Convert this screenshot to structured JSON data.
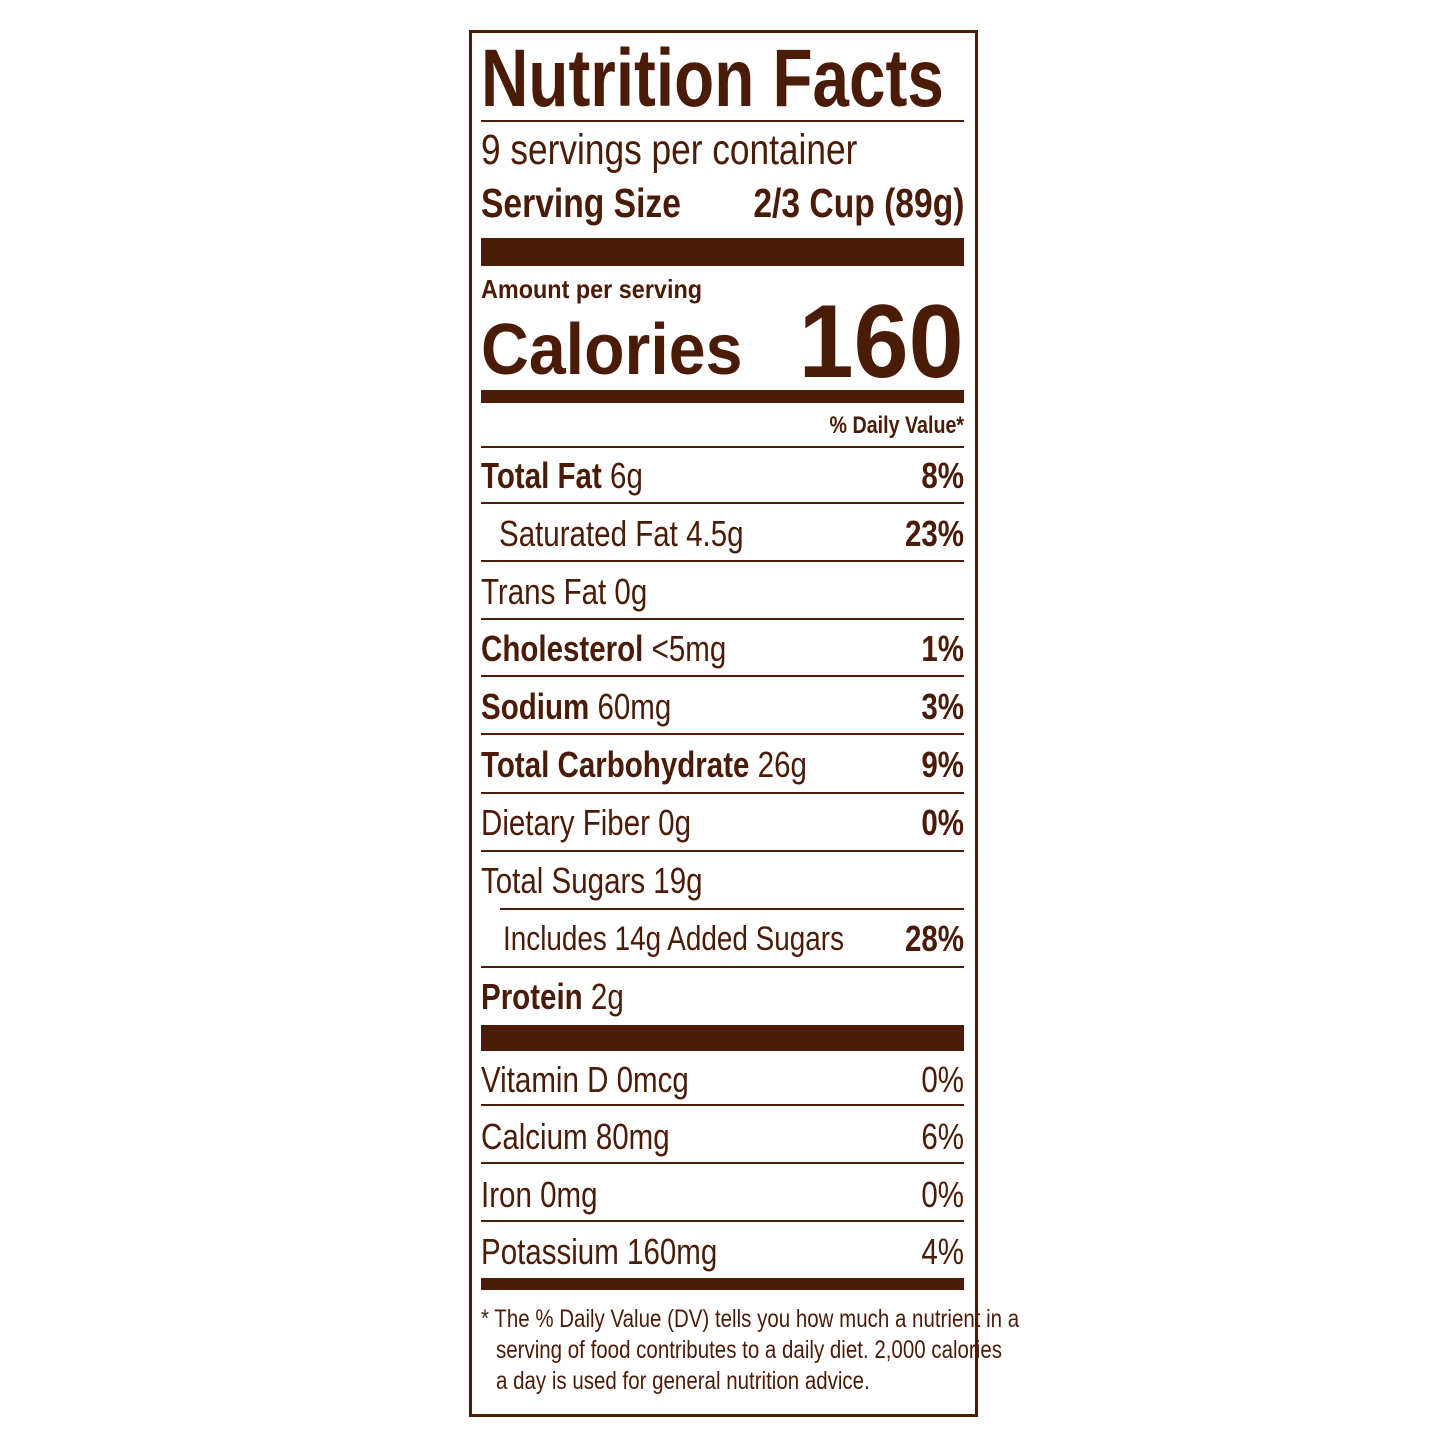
{
  "title": "Nutrition Facts",
  "servings_per_container": "9 servings per container",
  "serving_size_label": "Serving Size",
  "serving_size_value": "2/3 Cup (89g)",
  "amount_per_serving": "Amount per serving",
  "calories_label": "Calories",
  "calories_value": "160",
  "daily_value_header": "% Daily Value*",
  "nutrients": [
    {
      "name": "Total Fat",
      "amount": "6g",
      "dv": "8%"
    },
    {
      "name": "Saturated Fat",
      "amount": "4.5g",
      "dv": "23%"
    },
    {
      "name": "Trans Fat",
      "amount": "0g",
      "dv": ""
    },
    {
      "name": "Cholesterol",
      "amount": "<5mg",
      "dv": "1%"
    },
    {
      "name": "Sodium",
      "amount": "60mg",
      "dv": "3%"
    },
    {
      "name": "Total Carbohydrate",
      "amount": "26g",
      "dv": "9%"
    },
    {
      "name": "Dietary Fiber",
      "amount": "0g",
      "dv": "0%"
    },
    {
      "name": "Total Sugars",
      "amount": "19g",
      "dv": ""
    },
    {
      "name": "Includes 14g Added Sugars",
      "amount": "",
      "dv": "28%"
    },
    {
      "name": "Protein",
      "amount": "2g",
      "dv": ""
    }
  ],
  "vitamins": [
    {
      "name": "Vitamin D",
      "amount": "0mcg",
      "dv": "0%"
    },
    {
      "name": "Calcium",
      "amount": "80mg",
      "dv": "6%"
    },
    {
      "name": "Iron",
      "amount": "0mg",
      "dv": "0%"
    },
    {
      "name": "Potassium",
      "amount": "160mg",
      "dv": "4%"
    }
  ],
  "footnote": [
    "* The % Daily Value (DV) tells you how much a nutrient in a",
    "serving of food contributes to a daily diet. 2,000 calories",
    "a day is used for general nutrition advice."
  ],
  "colors": {
    "ink": "#4a1c08",
    "background": "#ffffff"
  }
}
